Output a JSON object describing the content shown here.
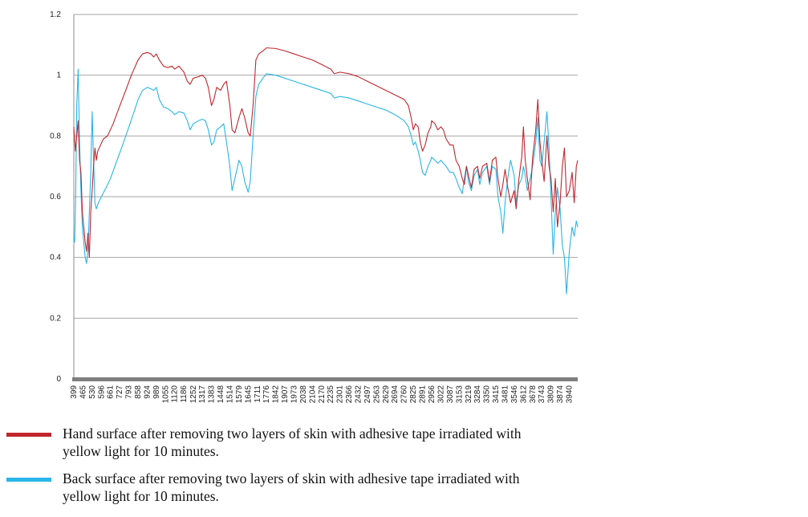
{
  "chart_data": {
    "type": "line",
    "ylim": [
      0,
      1.2
    ],
    "yticks": [
      0,
      0.2,
      0.4,
      0.6,
      0.8,
      1,
      1.2
    ],
    "ytick_labels": [
      "0",
      "0.2",
      "0.4",
      "0.6",
      "0.8",
      "1",
      "1.2"
    ],
    "grid": true,
    "xticks": [
      399,
      465,
      530,
      596,
      661,
      727,
      793,
      858,
      924,
      989,
      1055,
      1120,
      1186,
      1252,
      1317,
      1383,
      1448,
      1514,
      1579,
      1645,
      1711,
      1776,
      1842,
      1907,
      1973,
      2038,
      2104,
      2170,
      2235,
      2301,
      2366,
      2432,
      2497,
      2563,
      2629,
      2694,
      2760,
      2825,
      2891,
      2956,
      3022,
      3087,
      3153,
      3219,
      3284,
      3350,
      3415,
      3481,
      3546,
      3612,
      3678,
      3743,
      3809,
      3874,
      3940
    ],
    "xlim": [
      399,
      4000
    ],
    "legend_position": "bottom",
    "series": [
      {
        "name": "Hand surface after removing two layers of skin with adhesive tape irradiated with yellow light for 10 minutes.",
        "color": "#c0272d",
        "points": [
          [
            399,
            0.83
          ],
          [
            410,
            0.75
          ],
          [
            420,
            0.8
          ],
          [
            430,
            0.85
          ],
          [
            440,
            0.72
          ],
          [
            450,
            0.68
          ],
          [
            460,
            0.55
          ],
          [
            470,
            0.5
          ],
          [
            480,
            0.45
          ],
          [
            490,
            0.42
          ],
          [
            500,
            0.48
          ],
          [
            510,
            0.4
          ],
          [
            520,
            0.55
          ],
          [
            530,
            0.62
          ],
          [
            540,
            0.7
          ],
          [
            550,
            0.76
          ],
          [
            560,
            0.72
          ],
          [
            570,
            0.75
          ],
          [
            590,
            0.77
          ],
          [
            610,
            0.79
          ],
          [
            640,
            0.8
          ],
          [
            680,
            0.84
          ],
          [
            720,
            0.89
          ],
          [
            770,
            0.95
          ],
          [
            810,
            1.0
          ],
          [
            858,
            1.05
          ],
          [
            890,
            1.07
          ],
          [
            924,
            1.075
          ],
          [
            950,
            1.07
          ],
          [
            970,
            1.06
          ],
          [
            989,
            1.07
          ],
          [
            1010,
            1.05
          ],
          [
            1040,
            1.03
          ],
          [
            1070,
            1.025
          ],
          [
            1100,
            1.03
          ],
          [
            1120,
            1.02
          ],
          [
            1150,
            1.03
          ],
          [
            1186,
            1.01
          ],
          [
            1210,
            0.98
          ],
          [
            1230,
            0.97
          ],
          [
            1252,
            0.99
          ],
          [
            1290,
            0.995
          ],
          [
            1317,
            1.0
          ],
          [
            1340,
            0.99
          ],
          [
            1360,
            0.96
          ],
          [
            1383,
            0.9
          ],
          [
            1400,
            0.92
          ],
          [
            1420,
            0.96
          ],
          [
            1448,
            0.95
          ],
          [
            1470,
            0.97
          ],
          [
            1490,
            0.98
          ],
          [
            1514,
            0.9
          ],
          [
            1530,
            0.82
          ],
          [
            1550,
            0.81
          ],
          [
            1579,
            0.86
          ],
          [
            1600,
            0.89
          ],
          [
            1620,
            0.86
          ],
          [
            1645,
            0.81
          ],
          [
            1660,
            0.8
          ],
          [
            1680,
            0.9
          ],
          [
            1700,
            1.05
          ],
          [
            1720,
            1.07
          ],
          [
            1750,
            1.08
          ],
          [
            1776,
            1.09
          ],
          [
            1842,
            1.088
          ],
          [
            1907,
            1.08
          ],
          [
            1973,
            1.07
          ],
          [
            2038,
            1.06
          ],
          [
            2104,
            1.05
          ],
          [
            2170,
            1.035
          ],
          [
            2235,
            1.02
          ],
          [
            2260,
            1.005
          ],
          [
            2301,
            1.01
          ],
          [
            2366,
            1.005
          ],
          [
            2432,
            0.995
          ],
          [
            2497,
            0.98
          ],
          [
            2563,
            0.965
          ],
          [
            2629,
            0.95
          ],
          [
            2694,
            0.935
          ],
          [
            2760,
            0.92
          ],
          [
            2790,
            0.9
          ],
          [
            2810,
            0.86
          ],
          [
            2825,
            0.82
          ],
          [
            2840,
            0.84
          ],
          [
            2860,
            0.83
          ],
          [
            2875,
            0.78
          ],
          [
            2891,
            0.75
          ],
          [
            2910,
            0.77
          ],
          [
            2930,
            0.81
          ],
          [
            2950,
            0.83
          ],
          [
            2956,
            0.85
          ],
          [
            2980,
            0.84
          ],
          [
            3000,
            0.82
          ],
          [
            3022,
            0.83
          ],
          [
            3040,
            0.82
          ],
          [
            3060,
            0.79
          ],
          [
            3087,
            0.77
          ],
          [
            3110,
            0.77
          ],
          [
            3130,
            0.72
          ],
          [
            3153,
            0.7
          ],
          [
            3175,
            0.66
          ],
          [
            3190,
            0.64
          ],
          [
            3205,
            0.7
          ],
          [
            3219,
            0.67
          ],
          [
            3240,
            0.63
          ],
          [
            3260,
            0.69
          ],
          [
            3284,
            0.7
          ],
          [
            3300,
            0.66
          ],
          [
            3320,
            0.7
          ],
          [
            3350,
            0.71
          ],
          [
            3370,
            0.65
          ],
          [
            3390,
            0.72
          ],
          [
            3415,
            0.73
          ],
          [
            3430,
            0.66
          ],
          [
            3450,
            0.6
          ],
          [
            3465,
            0.64
          ],
          [
            3481,
            0.69
          ],
          [
            3500,
            0.63
          ],
          [
            3520,
            0.58
          ],
          [
            3546,
            0.62
          ],
          [
            3560,
            0.56
          ],
          [
            3580,
            0.66
          ],
          [
            3600,
            0.73
          ],
          [
            3612,
            0.83
          ],
          [
            3625,
            0.72
          ],
          [
            3640,
            0.66
          ],
          [
            3660,
            0.59
          ],
          [
            3678,
            0.73
          ],
          [
            3700,
            0.82
          ],
          [
            3715,
            0.92
          ],
          [
            3730,
            0.78
          ],
          [
            3743,
            0.72
          ],
          [
            3760,
            0.65
          ],
          [
            3780,
            0.8
          ],
          [
            3795,
            0.7
          ],
          [
            3809,
            0.66
          ],
          [
            3825,
            0.55
          ],
          [
            3840,
            0.66
          ],
          [
            3855,
            0.5
          ],
          [
            3874,
            0.58
          ],
          [
            3890,
            0.7
          ],
          [
            3905,
            0.76
          ],
          [
            3920,
            0.6
          ],
          [
            3940,
            0.62
          ],
          [
            3960,
            0.68
          ],
          [
            3975,
            0.58
          ],
          [
            3990,
            0.7
          ],
          [
            4000,
            0.72
          ]
        ]
      },
      {
        "name": "Back surface after removing two layers of skin with adhesive tape irradiated with yellow light for 10 minutes.",
        "color": "#29b5e8",
        "points": [
          [
            399,
            0.47
          ],
          [
            405,
            0.45
          ],
          [
            412,
            0.6
          ],
          [
            420,
            0.9
          ],
          [
            430,
            1.02
          ],
          [
            440,
            0.78
          ],
          [
            450,
            0.62
          ],
          [
            460,
            0.5
          ],
          [
            470,
            0.45
          ],
          [
            480,
            0.4
          ],
          [
            490,
            0.38
          ],
          [
            500,
            0.42
          ],
          [
            510,
            0.55
          ],
          [
            520,
            0.68
          ],
          [
            530,
            0.88
          ],
          [
            540,
            0.72
          ],
          [
            550,
            0.58
          ],
          [
            560,
            0.56
          ],
          [
            575,
            0.58
          ],
          [
            596,
            0.6
          ],
          [
            630,
            0.63
          ],
          [
            661,
            0.66
          ],
          [
            700,
            0.71
          ],
          [
            740,
            0.76
          ],
          [
            793,
            0.83
          ],
          [
            830,
            0.88
          ],
          [
            858,
            0.92
          ],
          [
            890,
            0.95
          ],
          [
            924,
            0.96
          ],
          [
            950,
            0.955
          ],
          [
            970,
            0.95
          ],
          [
            989,
            0.96
          ],
          [
            1010,
            0.92
          ],
          [
            1040,
            0.895
          ],
          [
            1070,
            0.89
          ],
          [
            1100,
            0.88
          ],
          [
            1120,
            0.87
          ],
          [
            1150,
            0.88
          ],
          [
            1186,
            0.875
          ],
          [
            1210,
            0.85
          ],
          [
            1230,
            0.82
          ],
          [
            1252,
            0.84
          ],
          [
            1290,
            0.85
          ],
          [
            1317,
            0.855
          ],
          [
            1340,
            0.85
          ],
          [
            1360,
            0.82
          ],
          [
            1383,
            0.77
          ],
          [
            1400,
            0.78
          ],
          [
            1420,
            0.82
          ],
          [
            1448,
            0.83
          ],
          [
            1470,
            0.84
          ],
          [
            1490,
            0.78
          ],
          [
            1514,
            0.7
          ],
          [
            1530,
            0.62
          ],
          [
            1550,
            0.66
          ],
          [
            1579,
            0.72
          ],
          [
            1600,
            0.7
          ],
          [
            1620,
            0.65
          ],
          [
            1645,
            0.615
          ],
          [
            1660,
            0.65
          ],
          [
            1680,
            0.8
          ],
          [
            1700,
            0.93
          ],
          [
            1720,
            0.97
          ],
          [
            1750,
            0.99
          ],
          [
            1776,
            1.005
          ],
          [
            1842,
            1.0
          ],
          [
            1907,
            0.99
          ],
          [
            1973,
            0.98
          ],
          [
            2038,
            0.97
          ],
          [
            2104,
            0.96
          ],
          [
            2170,
            0.95
          ],
          [
            2235,
            0.94
          ],
          [
            2260,
            0.925
          ],
          [
            2301,
            0.93
          ],
          [
            2366,
            0.925
          ],
          [
            2432,
            0.915
          ],
          [
            2497,
            0.905
          ],
          [
            2563,
            0.895
          ],
          [
            2629,
            0.885
          ],
          [
            2694,
            0.87
          ],
          [
            2760,
            0.85
          ],
          [
            2790,
            0.83
          ],
          [
            2810,
            0.8
          ],
          [
            2825,
            0.77
          ],
          [
            2840,
            0.78
          ],
          [
            2860,
            0.75
          ],
          [
            2875,
            0.72
          ],
          [
            2891,
            0.68
          ],
          [
            2910,
            0.67
          ],
          [
            2930,
            0.7
          ],
          [
            2950,
            0.72
          ],
          [
            2956,
            0.73
          ],
          [
            2980,
            0.72
          ],
          [
            3000,
            0.71
          ],
          [
            3022,
            0.72
          ],
          [
            3040,
            0.71
          ],
          [
            3060,
            0.7
          ],
          [
            3087,
            0.68
          ],
          [
            3110,
            0.68
          ],
          [
            3130,
            0.66
          ],
          [
            3153,
            0.63
          ],
          [
            3175,
            0.61
          ],
          [
            3190,
            0.66
          ],
          [
            3205,
            0.7
          ],
          [
            3219,
            0.65
          ],
          [
            3240,
            0.62
          ],
          [
            3260,
            0.67
          ],
          [
            3284,
            0.69
          ],
          [
            3300,
            0.64
          ],
          [
            3320,
            0.68
          ],
          [
            3350,
            0.7
          ],
          [
            3370,
            0.64
          ],
          [
            3390,
            0.7
          ],
          [
            3415,
            0.69
          ],
          [
            3430,
            0.6
          ],
          [
            3450,
            0.55
          ],
          [
            3465,
            0.48
          ],
          [
            3481,
            0.58
          ],
          [
            3500,
            0.66
          ],
          [
            3520,
            0.72
          ],
          [
            3546,
            0.67
          ],
          [
            3560,
            0.58
          ],
          [
            3580,
            0.64
          ],
          [
            3600,
            0.66
          ],
          [
            3612,
            0.7
          ],
          [
            3625,
            0.67
          ],
          [
            3640,
            0.62
          ],
          [
            3660,
            0.66
          ],
          [
            3678,
            0.7
          ],
          [
            3700,
            0.78
          ],
          [
            3715,
            0.86
          ],
          [
            3730,
            0.72
          ],
          [
            3743,
            0.7
          ],
          [
            3760,
            0.78
          ],
          [
            3780,
            0.88
          ],
          [
            3795,
            0.76
          ],
          [
            3809,
            0.6
          ],
          [
            3825,
            0.41
          ],
          [
            3840,
            0.55
          ],
          [
            3855,
            0.63
          ],
          [
            3874,
            0.56
          ],
          [
            3890,
            0.44
          ],
          [
            3905,
            0.4
          ],
          [
            3920,
            0.28
          ],
          [
            3940,
            0.42
          ],
          [
            3960,
            0.5
          ],
          [
            3975,
            0.47
          ],
          [
            3990,
            0.52
          ],
          [
            4000,
            0.5
          ]
        ]
      }
    ]
  },
  "legend": {
    "items": [
      {
        "line1": "Hand surface after removing two layers of skin with adhesive tape irradiated with",
        "line2": "yellow light for 10 minutes.",
        "color": "#c0272d"
      },
      {
        "line1": "Back surface after removing two layers of skin with adhesive tape irradiated with",
        "line2": "yellow light for 10 minutes.",
        "color": "#29b5e8"
      }
    ]
  }
}
